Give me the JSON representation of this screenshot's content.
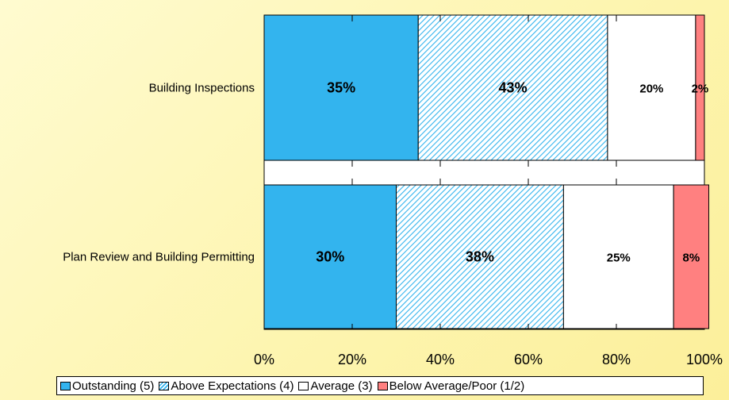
{
  "chart_data": {
    "type": "bar",
    "orientation": "horizontal",
    "stacked": true,
    "percent": true,
    "categories": [
      "Building Inspections",
      "Plan Review and Building Permitting"
    ],
    "series": [
      {
        "name": "Outstanding (5)",
        "values": [
          35,
          30
        ],
        "labels": [
          "35%",
          "30%"
        ],
        "color": "#33b4ee",
        "pattern": "solid"
      },
      {
        "name": "Above Expectations (4)",
        "values": [
          43,
          38
        ],
        "labels": [
          "43%",
          "38%"
        ],
        "color": "#33b4ee",
        "pattern": "diagonal-hatch"
      },
      {
        "name": "Average (3)",
        "values": [
          20,
          25
        ],
        "labels": [
          "20%",
          "25%"
        ],
        "color": "#ffffff",
        "pattern": "solid"
      },
      {
        "name": "Below Average/Poor (1/2)",
        "values": [
          2,
          8
        ],
        "labels": [
          "2%",
          "8%"
        ],
        "color": "#ff8080",
        "pattern": "solid"
      }
    ],
    "x_ticks": [
      "0%",
      "20%",
      "40%",
      "60%",
      "80%",
      "100%"
    ],
    "xlim": [
      0,
      100
    ],
    "legend_position": "bottom",
    "grid": false
  }
}
